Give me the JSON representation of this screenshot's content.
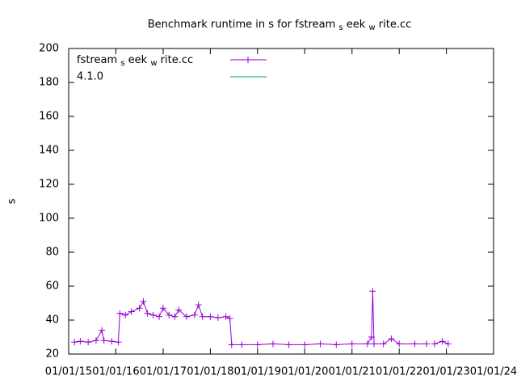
{
  "chart_data": {
    "type": "line",
    "title": [
      "Benchmark runtime in s for fstream",
      "s",
      "eek",
      "w",
      "rite.cc"
    ],
    "ylabel": "s",
    "xlim": [
      "2015-01-01",
      "2024-01-01"
    ],
    "xticks": [
      {
        "value": "2015-01-01",
        "label": "01/01/15"
      },
      {
        "value": "2016-01-01",
        "label": "01/01/16"
      },
      {
        "value": "2017-01-01",
        "label": "01/01/17"
      },
      {
        "value": "2018-01-01",
        "label": "01/01/18"
      },
      {
        "value": "2019-01-01",
        "label": "01/01/19"
      },
      {
        "value": "2020-01-01",
        "label": "01/01/20"
      },
      {
        "value": "2021-01-01",
        "label": "01/01/21"
      },
      {
        "value": "2022-01-01",
        "label": "01/01/22"
      },
      {
        "value": "2023-01-01",
        "label": "01/01/23"
      },
      {
        "value": "2024-01-01",
        "label": "01/01/24"
      }
    ],
    "ylim": [
      20,
      200
    ],
    "yticks": [
      20,
      40,
      60,
      80,
      100,
      120,
      140,
      160,
      180,
      200
    ],
    "legend": "top-left",
    "series": [
      {
        "name": [
          "fstream",
          "s",
          "eek",
          "w",
          "rite.cc"
        ],
        "color": "#9400d3",
        "x": [
          "2015-02-15",
          "2015-04-01",
          "2015-06-01",
          "2015-08-01",
          "2015-09-15",
          "2015-10-01",
          "2015-12-01",
          "2016-01-20",
          "2016-02-01",
          "2016-03-15",
          "2016-05-01",
          "2016-07-01",
          "2016-08-01",
          "2016-09-01",
          "2016-10-15",
          "2016-12-01",
          "2017-01-01",
          "2017-02-15",
          "2017-04-01",
          "2017-05-01",
          "2017-07-01",
          "2017-09-01",
          "2017-10-01",
          "2017-11-01",
          "2018-01-01",
          "2018-03-01",
          "2018-05-01",
          "2018-06-01",
          "2018-06-15",
          "2018-09-01",
          "2019-01-01",
          "2019-05-01",
          "2019-09-01",
          "2020-01-01",
          "2020-05-01",
          "2020-09-01",
          "2021-01-01",
          "2021-05-01",
          "2021-06-01",
          "2021-06-10",
          "2021-06-20",
          "2021-09-01",
          "2021-11-01",
          "2022-01-01",
          "2022-05-01",
          "2022-08-01",
          "2022-08-10",
          "2022-10-01",
          "2022-12-01",
          "2023-01-15"
        ],
        "values": [
          27,
          27.5,
          27,
          28,
          34,
          28,
          27.5,
          27,
          44,
          43,
          45,
          47,
          51,
          44,
          43,
          42,
          47,
          43,
          42,
          46,
          42,
          43,
          49,
          42,
          42,
          41.5,
          42,
          41,
          25.5,
          25.5,
          25.5,
          26,
          25.5,
          25.5,
          26,
          25.5,
          26,
          26,
          30,
          57,
          26,
          26,
          29,
          26,
          26,
          26,
          null,
          26,
          27.5,
          26
        ]
      },
      {
        "name": "4.1.0",
        "color": "#009e73",
        "x": [],
        "values": []
      }
    ]
  }
}
